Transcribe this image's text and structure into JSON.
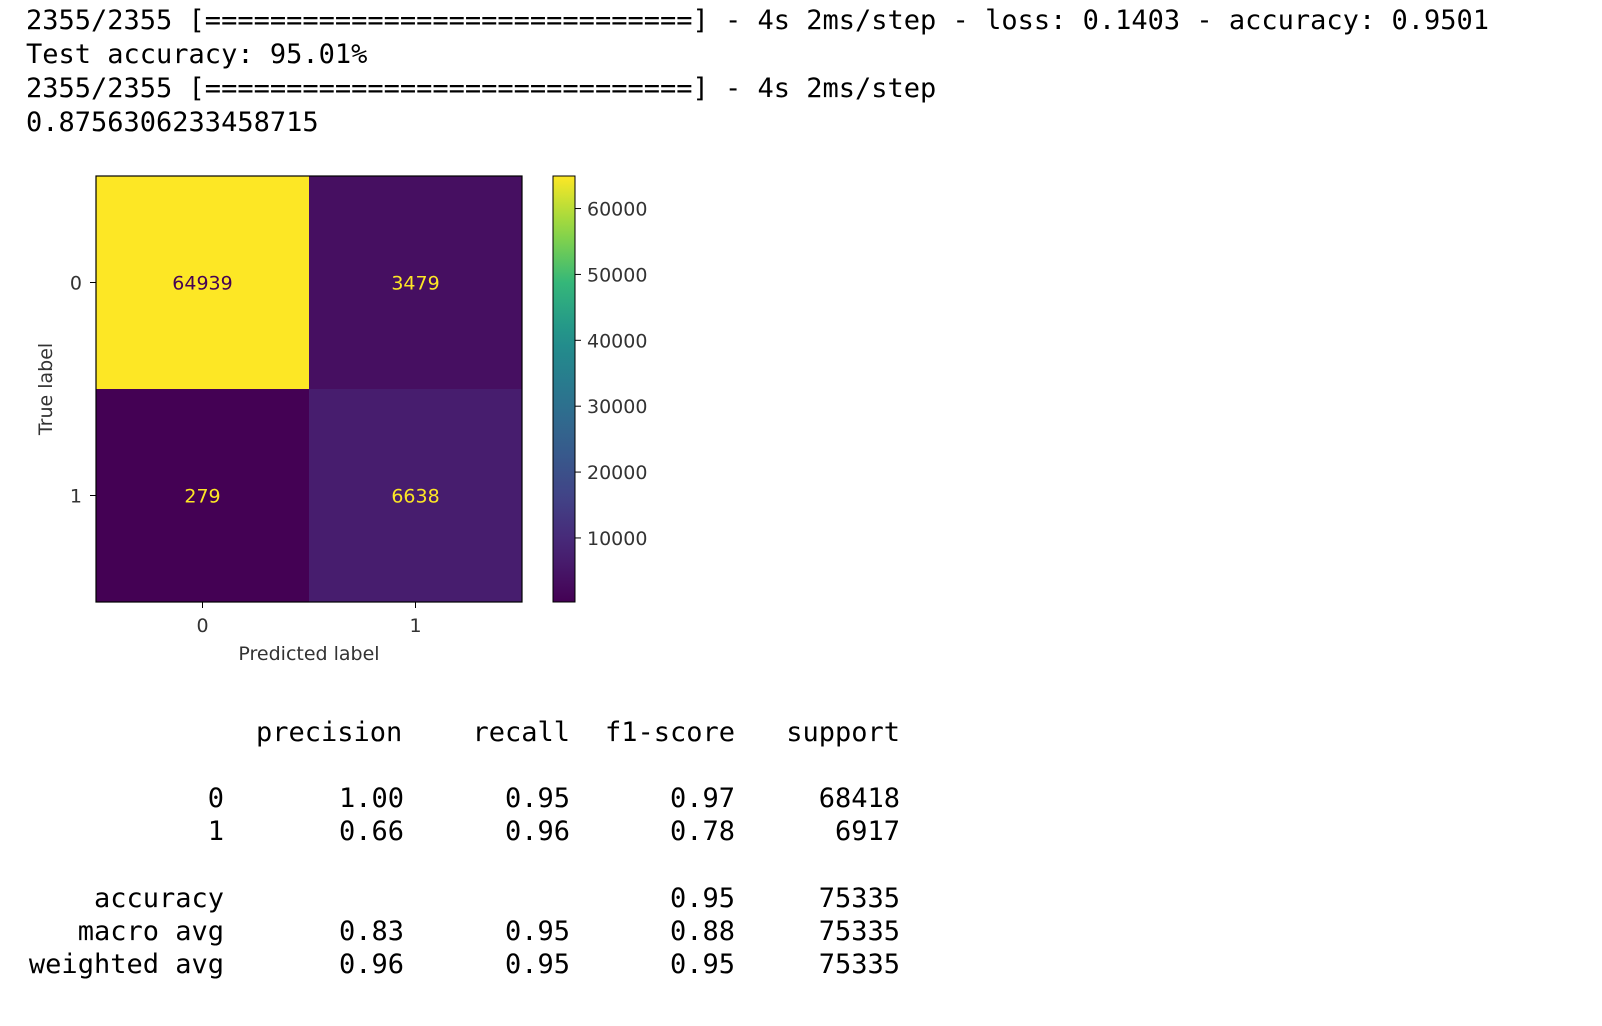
{
  "log": {
    "lines": [
      "2355/2355 [==============================] - 4s 2ms/step - loss: 0.1403 - accuracy: 0.9501",
      "Test accuracy: 95.01%",
      "2355/2355 [==============================] - 4s 2ms/step",
      "0.8756306233458715"
    ]
  },
  "colors": {
    "viridis_low": "#440154",
    "viridis_high": "#fde725",
    "text_light": "#fde725",
    "text_dark": "#440154"
  },
  "chart_data": {
    "type": "heatmap",
    "title": "",
    "xlabel": "Predicted label",
    "ylabel": "True label",
    "x_categories": [
      "0",
      "1"
    ],
    "y_categories": [
      "0",
      "1"
    ],
    "matrix": [
      [
        64939,
        3479
      ],
      [
        279,
        6638
      ]
    ],
    "cell_labels": [
      [
        "64939",
        "3479"
      ],
      [
        "279",
        "6638"
      ]
    ],
    "colorbar": {
      "vmin": 279,
      "vmax": 64939,
      "ticks": [
        10000,
        20000,
        30000,
        40000,
        50000,
        60000
      ],
      "tick_labels": [
        "10000",
        "20000",
        "30000",
        "40000",
        "50000",
        "60000"
      ]
    },
    "colormap": "viridis"
  },
  "report": {
    "header": [
      "precision",
      "recall",
      "f1-score",
      "support"
    ],
    "rows": [
      {
        "label": "0",
        "precision": "1.00",
        "recall": "0.95",
        "f1": "0.97",
        "support": "68418"
      },
      {
        "label": "1",
        "precision": "0.66",
        "recall": "0.96",
        "f1": "0.78",
        "support": "6917"
      },
      {
        "label": "accuracy",
        "precision": "",
        "recall": "",
        "f1": "0.95",
        "support": "75335"
      },
      {
        "label": "macro avg",
        "precision": "0.83",
        "recall": "0.95",
        "f1": "0.88",
        "support": "75335"
      },
      {
        "label": "weighted avg",
        "precision": "0.96",
        "recall": "0.95",
        "f1": "0.95",
        "support": "75335"
      }
    ]
  }
}
